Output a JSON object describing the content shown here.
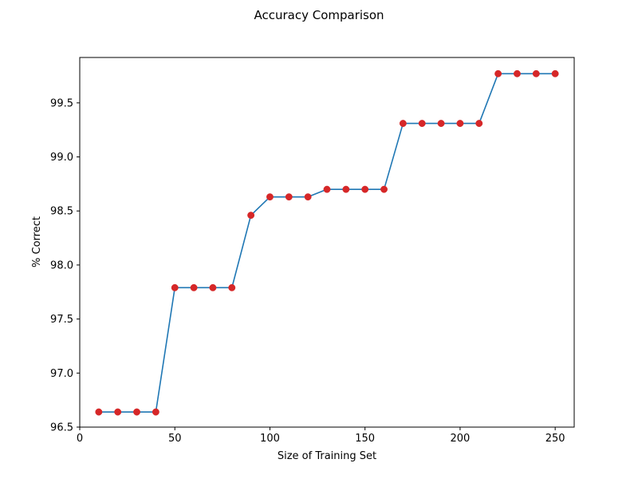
{
  "chart_data": {
    "type": "line",
    "title": "Accuracy Comparison",
    "xlabel": "Size of Training Set",
    "ylabel": "% Correct",
    "xlim": [
      0,
      260
    ],
    "ylim": [
      96.5,
      99.92
    ],
    "xticks": [
      0,
      50,
      100,
      150,
      200,
      250
    ],
    "yticks": [
      96.5,
      97.0,
      97.5,
      98.0,
      98.5,
      99.0,
      99.5
    ],
    "xtick_labels": [
      "0",
      "50",
      "100",
      "150",
      "200",
      "250"
    ],
    "ytick_labels": [
      "96.5",
      "97.0",
      "97.5",
      "98.0",
      "98.5",
      "99.0",
      "99.5"
    ],
    "grid": false,
    "legend": "none",
    "series": [
      {
        "x": [
          10,
          20,
          30,
          40,
          50,
          60,
          70,
          80,
          90,
          100,
          110,
          120,
          130,
          140,
          150,
          160,
          170,
          180,
          190,
          200,
          210,
          220,
          230,
          240,
          250
        ],
        "y": [
          96.64,
          96.64,
          96.64,
          96.64,
          97.79,
          97.79,
          97.79,
          97.79,
          98.46,
          98.63,
          98.63,
          98.63,
          98.7,
          98.7,
          98.7,
          98.7,
          99.31,
          99.31,
          99.31,
          99.31,
          99.31,
          99.77,
          99.77,
          99.77,
          99.77
        ],
        "line_color": "#1f77b4",
        "marker_color": "#d62728"
      }
    ]
  }
}
